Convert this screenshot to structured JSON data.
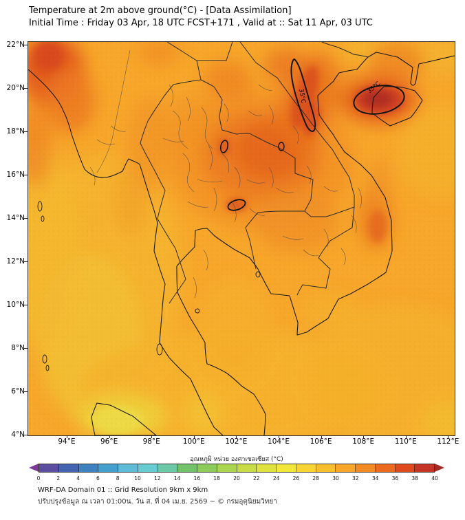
{
  "header": {
    "title": "Temperature at 2m above ground(°C) - [Data Assimilation]",
    "subtitle": "Initial Time : Friday 03 Apr, 18 UTC FCST+171 , Valid at :: Sat 11 Apr, 03 UTC"
  },
  "axes": {
    "y_ticks": [
      {
        "label": "22°N",
        "lat": 22
      },
      {
        "label": "20°N",
        "lat": 20
      },
      {
        "label": "18°N",
        "lat": 18
      },
      {
        "label": "16°N",
        "lat": 16
      },
      {
        "label": "14°N",
        "lat": 14
      },
      {
        "label": "12°N",
        "lat": 12
      },
      {
        "label": "10°N",
        "lat": 10
      },
      {
        "label": "8°N",
        "lat": 8
      },
      {
        "label": "6°N",
        "lat": 6
      },
      {
        "label": "4°N",
        "lat": 4
      }
    ],
    "x_ticks": [
      {
        "label": "94°E",
        "lon": 94
      },
      {
        "label": "96°E",
        "lon": 96
      },
      {
        "label": "98°E",
        "lon": 98
      },
      {
        "label": "100°E",
        "lon": 100
      },
      {
        "label": "102°E",
        "lon": 102
      },
      {
        "label": "104°E",
        "lon": 104
      },
      {
        "label": "106°E",
        "lon": 106
      },
      {
        "label": "108°E",
        "lon": 108
      },
      {
        "label": "110°E",
        "lon": 110
      },
      {
        "label": "112°E",
        "lon": 112
      }
    ]
  },
  "contours": {
    "band_label": "35°C",
    "spot_label": "35°C"
  },
  "colorbar": {
    "title": "อุณหภูมิ หน่วย องศาเซลเซียส (°C)",
    "ticks": [
      "0",
      "2",
      "4",
      "6",
      "8",
      "10",
      "12",
      "14",
      "16",
      "18",
      "20",
      "22",
      "24",
      "26",
      "28",
      "30",
      "32",
      "34",
      "36",
      "38",
      "40"
    ],
    "arrow_left_color": "#7C3A96",
    "arrow_right_color": "#A62A24",
    "segment_colors": [
      "#5B4EA1",
      "#4464B0",
      "#3E82C0",
      "#46A0CE",
      "#5FBCD8",
      "#67CBD1",
      "#6BC9A8",
      "#72C269",
      "#8CCB5A",
      "#ABD54E",
      "#C8DD45",
      "#E0E23F",
      "#F2E63A",
      "#F8D434",
      "#F7BE2E",
      "#F7A629",
      "#F28A24",
      "#EC6A1F",
      "#DE4A1E",
      "#C43526"
    ]
  },
  "footer": {
    "line1": "WRF-DA Domain 01 :: Grid Resolution 9km x 9km",
    "line2": "ปรับปรุงข้อมูล ณ เวลา 01:00น. วัน ส. ที่ 04 เม.ย. 2569 ~ © กรมอุตุนิยมวิทยา"
  },
  "chart_data": {
    "type": "heatmap",
    "title": "Temperature at 2m above ground (°C) - Data Assimilation",
    "valid_time": "Sat 11 Apr, 03 UTC",
    "initial_time": "Friday 03 Apr, 18 UTC FCST+171",
    "units": "°C",
    "region": {
      "lon_min": 92.2,
      "lon_max": 112.3,
      "lat_min": 4,
      "lat_max": 22.2
    },
    "x_ticks_lon_e": [
      94,
      96,
      98,
      100,
      102,
      104,
      106,
      108,
      110,
      112
    ],
    "y_ticks_lat_n": [
      4,
      6,
      8,
      10,
      12,
      14,
      16,
      18,
      20,
      22
    ],
    "scale": {
      "min": 0,
      "max": 40,
      "step": 2
    },
    "background_value_c": 31,
    "features": [
      {
        "area": "Northeast Thailand / central Laos warm mass",
        "lon": 103.5,
        "lat": 16.5,
        "value_c": 33
      },
      {
        "area": "Laos-Vietnam border elongated hot band",
        "lon": 105.3,
        "lat": 19.2,
        "value_c": 35,
        "contour": "35°C"
      },
      {
        "area": "Hainan / Leizhou dark-red hot spot",
        "lon": 109.3,
        "lat": 19.4,
        "value_c": 36,
        "contour": "35°C"
      },
      {
        "area": "Northwest corner (Myanmar highlands edge)",
        "lon": 93.8,
        "lat": 21.3,
        "value_c": 34
      },
      {
        "area": "Small 35°C pocket north of Vientiane",
        "lon": 101.4,
        "lat": 17.3,
        "value_c": 35
      },
      {
        "area": "Small 35°C pocket NE Thailand plateau",
        "lon": 102.0,
        "lat": 14.6,
        "value_c": 35
      },
      {
        "area": "Southern Vietnam coastal warm patch",
        "lon": 108.5,
        "lat": 13.8,
        "value_c": 33
      },
      {
        "area": "Andaman Sea (cooler)",
        "lon": 95.5,
        "lat": 10.0,
        "value_c": 29
      },
      {
        "area": "Northern Sumatra tip (coolest, yellow)",
        "lon": 96.3,
        "lat": 4.8,
        "value_c": 27
      },
      {
        "area": "Gulf of Thailand",
        "lon": 101.5,
        "lat": 10.0,
        "value_c": 30
      }
    ],
    "legend_position": "bottom",
    "grid": false
  }
}
